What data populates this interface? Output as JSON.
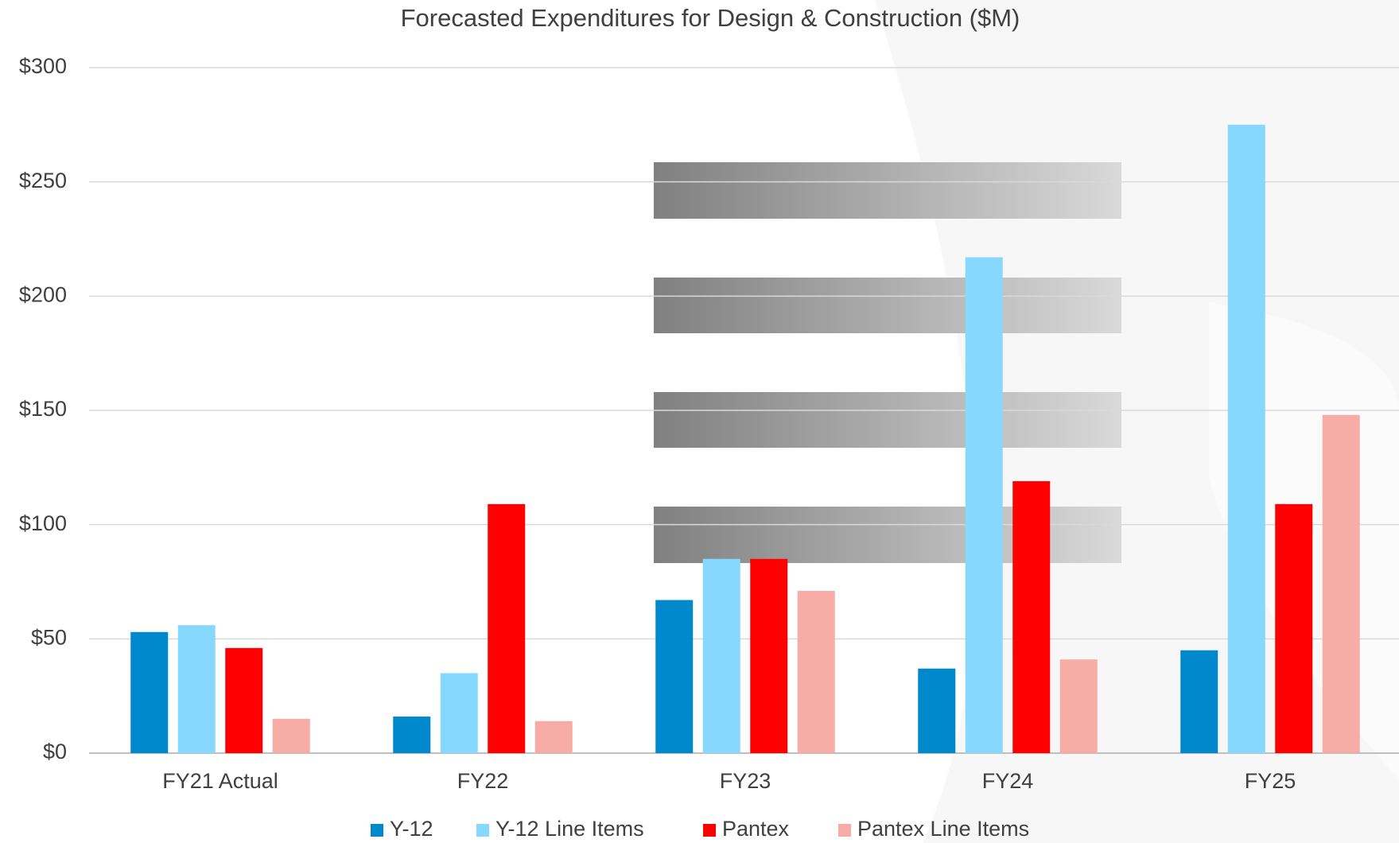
{
  "chart_data": {
    "type": "bar",
    "title": "Forecasted Expenditures for Design & Construction ($M)",
    "categories": [
      "FY21 Actual",
      "FY22",
      "FY23",
      "FY24",
      "FY25"
    ],
    "series": [
      {
        "name": "Y-12",
        "color": "#0088cc",
        "values": [
          53,
          16,
          67,
          37,
          45
        ]
      },
      {
        "name": "Y-12 Line Items",
        "color": "#87d8ff",
        "values": [
          56,
          35,
          85,
          217,
          275
        ]
      },
      {
        "name": "Pantex",
        "color": "#ff0000",
        "values": [
          46,
          109,
          85,
          119,
          109
        ]
      },
      {
        "name": "Pantex Line Items",
        "color": "#f8aca6",
        "values": [
          15,
          14,
          71,
          41,
          148
        ]
      }
    ],
    "ylim": [
      0,
      300
    ],
    "yticks": [
      {
        "value": 0,
        "label": "$0"
      },
      {
        "value": 50,
        "label": "$50"
      },
      {
        "value": 100,
        "label": "$100"
      },
      {
        "value": 150,
        "label": "$150"
      },
      {
        "value": 200,
        "label": "$200"
      },
      {
        "value": 250,
        "label": "$250"
      },
      {
        "value": 300,
        "label": "$300"
      }
    ],
    "grid": true,
    "legend": "bottom"
  }
}
